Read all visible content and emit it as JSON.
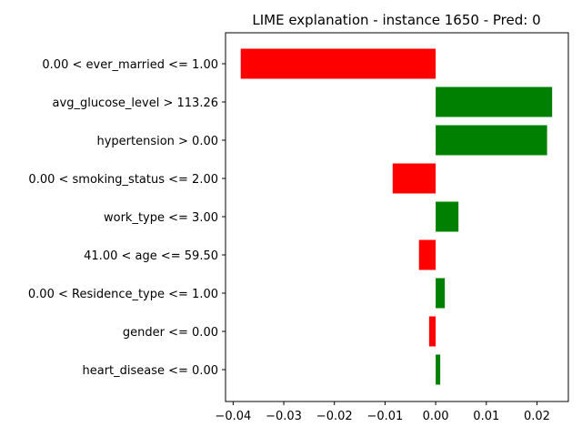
{
  "chart_data": {
    "type": "bar",
    "orientation": "horizontal",
    "title": "LIME explanation - instance 1650 - Pred: 0",
    "xlabel": "",
    "ylabel": "",
    "categories": [
      "0.00 < ever_married <= 1.00",
      "avg_glucose_level > 113.26",
      "hypertension > 0.00",
      "0.00 < smoking_status <= 2.00",
      "work_type <= 3.00",
      "41.00 < age <= 59.50",
      "0.00 < Residence_type <= 1.00",
      "gender <= 0.00",
      "heart_disease <= 0.00"
    ],
    "values": [
      -0.0385,
      0.023,
      0.022,
      -0.0085,
      0.0045,
      -0.0033,
      0.0018,
      -0.0013,
      0.0009
    ],
    "xlim": [
      -0.0415,
      0.0262
    ],
    "xticks": [
      -0.04,
      -0.03,
      -0.02,
      -0.01,
      0.0,
      0.01,
      0.02
    ],
    "xtick_labels": [
      "−0.04",
      "−0.03",
      "−0.02",
      "−0.01",
      "0.00",
      "0.01",
      "0.02"
    ],
    "colors": {
      "positive": "#008000",
      "negative": "#ff0000"
    },
    "grid": false,
    "legend": "none"
  }
}
